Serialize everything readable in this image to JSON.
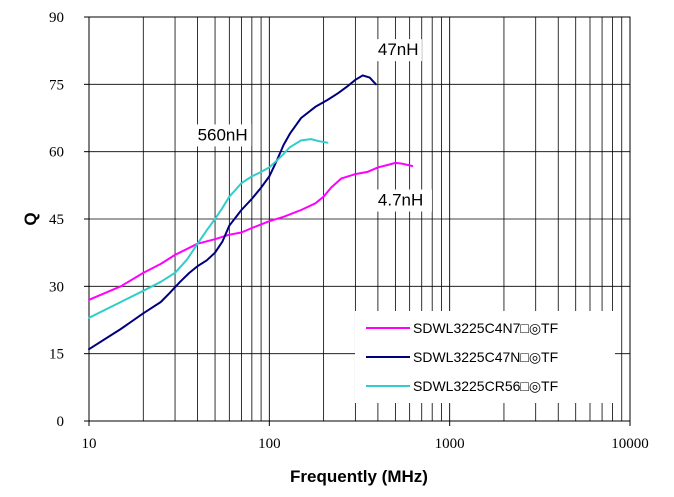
{
  "chart_data": {
    "type": "line",
    "xlabel": "Frequently (MHz)",
    "ylabel": "Q",
    "xscale": "log",
    "xlim": [
      10,
      10000
    ],
    "ylim": [
      0,
      90
    ],
    "x_ticks": [
      "10",
      "100",
      "1000",
      "10000"
    ],
    "y_ticks": [
      "0",
      "15",
      "30",
      "45",
      "60",
      "75",
      "90"
    ],
    "grid": "vertical log minor lines on",
    "legend_position": "bottom-right",
    "annotations": [
      {
        "text": "47nH",
        "x": 400,
        "y": 81.5
      },
      {
        "text": "560nH",
        "x": 40,
        "y": 62.5
      },
      {
        "text": "4.7nH",
        "x": 400,
        "y": 48
      }
    ],
    "series": [
      {
        "name": "SDWL3225C4N7□◎TF",
        "color": "#ff00ff",
        "x": [
          10,
          15,
          20,
          25,
          30,
          40,
          50,
          60,
          70,
          80,
          100,
          120,
          150,
          180,
          200,
          220,
          250,
          300,
          350,
          400,
          450,
          500,
          550,
          620
        ],
        "y": [
          27,
          30,
          33,
          35,
          37,
          39.5,
          40.5,
          41.5,
          42,
          43,
          44.5,
          45.5,
          47,
          48.5,
          50,
          52,
          54,
          55,
          55.5,
          56.5,
          57,
          57.5,
          57.3,
          56.8
        ]
      },
      {
        "name": "SDWL3225C47N□◎TF",
        "color": "#00007f",
        "x": [
          10,
          15,
          20,
          25,
          28,
          32,
          36,
          40,
          45,
          50,
          55,
          60,
          70,
          80,
          90,
          100,
          110,
          120,
          130,
          150,
          180,
          210,
          240,
          270,
          300,
          330,
          360,
          390
        ],
        "y": [
          16,
          20.5,
          24,
          26.5,
          28.5,
          31,
          33,
          34.5,
          35.8,
          37.5,
          40,
          43.5,
          47,
          49.5,
          52,
          54.5,
          58,
          61.5,
          64,
          67.5,
          70,
          71.5,
          73,
          74.5,
          76,
          77,
          76.5,
          75
        ]
      },
      {
        "name": "SDWL3225CR56□◎TF",
        "color": "#33cccc",
        "x": [
          10,
          15,
          20,
          25,
          30,
          35,
          40,
          45,
          50,
          55,
          60,
          65,
          70,
          80,
          90,
          100,
          110,
          120,
          130,
          150,
          170,
          190,
          210
        ],
        "y": [
          23,
          26.5,
          29,
          31,
          33,
          36,
          39.5,
          42.5,
          45,
          47.5,
          50,
          51.5,
          53,
          54.5,
          55.5,
          56.5,
          58,
          59.5,
          61,
          62.5,
          62.8,
          62.3,
          62
        ]
      }
    ]
  }
}
